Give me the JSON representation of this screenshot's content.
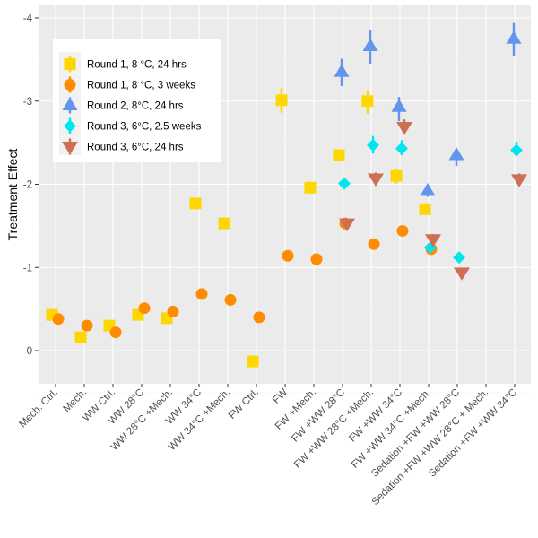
{
  "chart_data": {
    "type": "scatter",
    "title": "",
    "xlabel": "",
    "ylabel": "Treatment Effect",
    "y_reversed": true,
    "ylim": [
      0.4,
      -4.15
    ],
    "yticks": [
      "-4",
      "-3",
      "-2",
      "-1",
      "0"
    ],
    "ytick_values": [
      -4,
      -3,
      -2,
      -1,
      0
    ],
    "grid": true,
    "legend_position": "top-left",
    "categories": [
      "Mech. Ctrl.",
      "Mech.",
      "WW Ctrl.",
      "WW 28°C",
      "WW 28°C +Mech.",
      "WW 34°C",
      "WW 34°C +Mech.",
      "FW Ctrl.",
      "FW",
      "FW +Mech.",
      "FW +WW 28°C",
      "FW +WW 28°C +Mech.",
      "FW +WW 34°C",
      "FW +WW 34°C +Mech.",
      "Sedation +FW +WW 28°C",
      "Sedation +FW +WW 28°C + Mech.",
      "Sedation +FW +WW 34°C"
    ],
    "series": [
      {
        "name": "Round 1, 8 °C, 24 hrs",
        "shape": "square",
        "color": "#FFD700",
        "values": [
          -0.43,
          -0.16,
          -0.3,
          -0.43,
          -0.39,
          -1.77,
          -1.53,
          0.13,
          -3.01,
          -1.96,
          -2.35,
          -3.0,
          -2.1,
          -1.7,
          null,
          null,
          null
        ],
        "ci": [
          null,
          null,
          null,
          null,
          null,
          [
            -1.8,
            -1.73
          ],
          [
            -1.57,
            -1.49
          ],
          null,
          [
            -3.16,
            -2.86
          ],
          [
            -1.99,
            -1.93
          ],
          [
            -2.42,
            -2.28
          ],
          [
            -3.13,
            -2.85
          ],
          [
            -2.19,
            -2.01
          ],
          [
            -1.72,
            -1.67
          ],
          null,
          null,
          null
        ]
      },
      {
        "name": "Round 1, 8 °C, 3 weeks",
        "shape": "circle",
        "color": "#FF8C00",
        "values": [
          -0.38,
          -0.3,
          -0.22,
          -0.51,
          -0.47,
          -0.68,
          -0.61,
          -0.4,
          -1.14,
          -1.1,
          -1.53,
          -1.28,
          -1.44,
          -1.22,
          null,
          null,
          null
        ],
        "ci": []
      },
      {
        "name": "Round 2, 8°C, 24 hrs",
        "shape": "triangle-up",
        "color": "#6495ED",
        "values": [
          null,
          null,
          null,
          null,
          null,
          null,
          null,
          null,
          null,
          null,
          -3.35,
          -3.66,
          -2.93,
          -1.92,
          -2.35,
          null,
          -3.75
        ],
        "ci": [
          null,
          null,
          null,
          null,
          null,
          null,
          null,
          null,
          null,
          null,
          [
            -3.51,
            -3.18
          ],
          [
            -3.86,
            -3.45
          ],
          [
            -3.05,
            -2.76
          ],
          [
            -1.98,
            -1.85
          ],
          [
            -2.4,
            -2.22
          ],
          null,
          [
            -3.94,
            -3.54
          ]
        ]
      },
      {
        "name": "Round 3, 6°C, 2.5 weeks",
        "shape": "diamond",
        "color": "#00E5EE",
        "values": [
          null,
          null,
          null,
          null,
          null,
          null,
          null,
          null,
          null,
          null,
          -2.01,
          -2.47,
          -2.43,
          -1.24,
          -1.12,
          null,
          -2.41
        ],
        "ci": [
          null,
          null,
          null,
          null,
          null,
          null,
          null,
          null,
          null,
          null,
          [
            -2.07,
            -1.95
          ],
          [
            -2.58,
            -2.37
          ],
          [
            -2.53,
            -2.35
          ],
          [
            -1.28,
            -1.2
          ],
          [
            -1.14,
            -1.08
          ],
          null,
          [
            -2.51,
            -2.34
          ]
        ]
      },
      {
        "name": "Round 3, 6°C, 24 hrs",
        "shape": "triangle-down",
        "color": "#CD6E55",
        "values": [
          null,
          null,
          null,
          null,
          null,
          null,
          null,
          null,
          null,
          null,
          -1.53,
          -2.07,
          -2.69,
          -1.34,
          -0.94,
          null,
          -2.06
        ],
        "ci": [
          null,
          null,
          null,
          null,
          null,
          null,
          null,
          null,
          null,
          null,
          [
            -1.59,
            -1.48
          ],
          [
            -2.14,
            -2.0
          ],
          [
            -2.78,
            -2.6
          ],
          [
            -1.4,
            -1.28
          ],
          [
            -0.97,
            -0.9
          ],
          null,
          [
            -2.13,
            -2.0
          ]
        ]
      }
    ]
  }
}
